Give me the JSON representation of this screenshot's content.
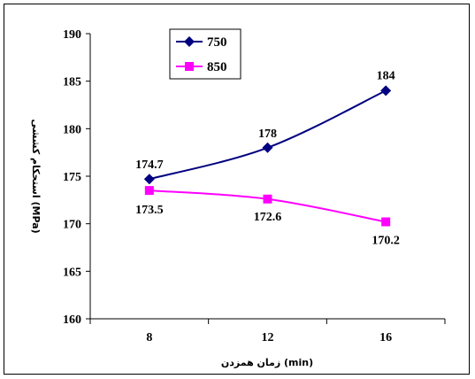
{
  "chart_data": {
    "type": "line",
    "xlabel": "زمان همزدن (min)",
    "ylabel": "استحکام کششی (MPa)",
    "categories": [
      "8",
      "12",
      "16"
    ],
    "ylim": [
      160,
      190
    ],
    "yticks": [
      "160",
      "165",
      "170",
      "175",
      "180",
      "185",
      "190"
    ],
    "grid": false,
    "legend_position": "top-left",
    "series": [
      {
        "name": "750",
        "values": [
          174.7,
          178,
          184
        ],
        "labels": [
          "174.7",
          "178",
          "184"
        ],
        "color": "#000080",
        "marker": "diamond"
      },
      {
        "name": "850",
        "values": [
          173.5,
          172.6,
          170.2
        ],
        "labels": [
          "173.5",
          "172.6",
          "170.2"
        ],
        "color": "#ff00ff",
        "marker": "square"
      }
    ]
  }
}
